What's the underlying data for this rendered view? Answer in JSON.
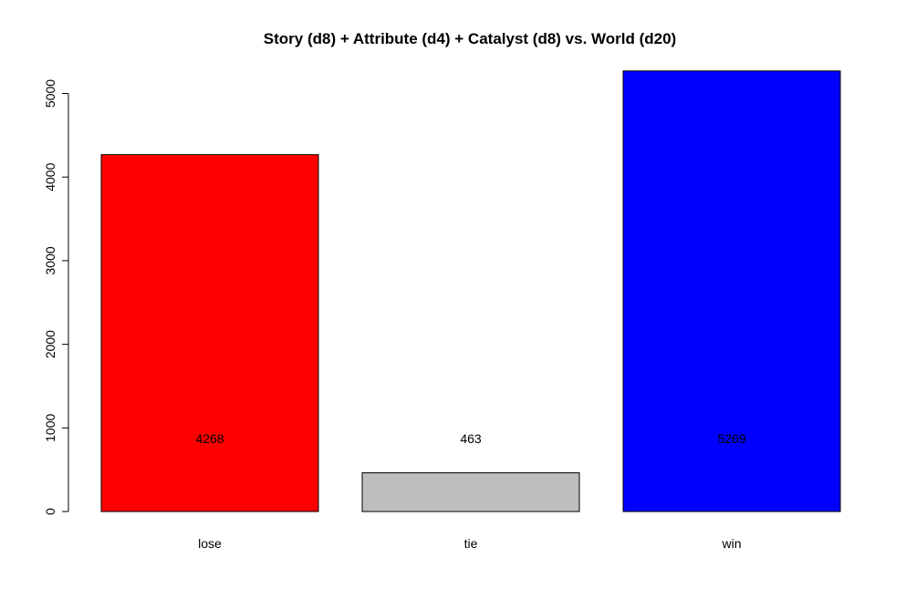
{
  "chart_data": {
    "type": "bar",
    "title": "Story (d8) + Attribute (d4) + Catalyst (d8) vs. World (d20)",
    "xlabel": "",
    "ylabel": "",
    "categories": [
      "lose",
      "tie",
      "win"
    ],
    "values": [
      4268,
      463,
      5269
    ],
    "value_labels": [
      "4268",
      "463",
      "5269"
    ],
    "colors": [
      "#ff0000",
      "#bebebe",
      "#0000ff"
    ],
    "yticks": [
      0,
      1000,
      2000,
      3000,
      4000,
      5000
    ],
    "ytick_labels": [
      "0",
      "1000",
      "2000",
      "3000",
      "4000",
      "5000"
    ],
    "ylim": [
      0,
      5269
    ],
    "grid": false,
    "legend": "none"
  }
}
